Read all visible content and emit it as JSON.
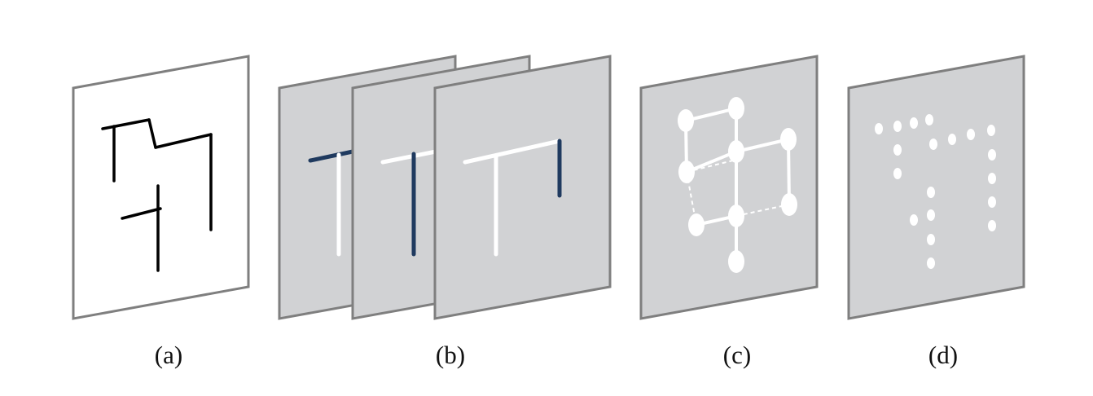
{
  "panels": {
    "a": {
      "caption": "(a)"
    },
    "b": {
      "caption": "(b)"
    },
    "c": {
      "caption": "(c)"
    },
    "d": {
      "caption": "(d)"
    }
  },
  "colors": {
    "sheet_white": "#ffffff",
    "sheet_gray": "#d1d2d4",
    "sheet_border": "#7f7f7f",
    "stroke_black": "#000000",
    "stroke_white": "#ffffff",
    "stroke_navy": "#1f3a5f"
  }
}
